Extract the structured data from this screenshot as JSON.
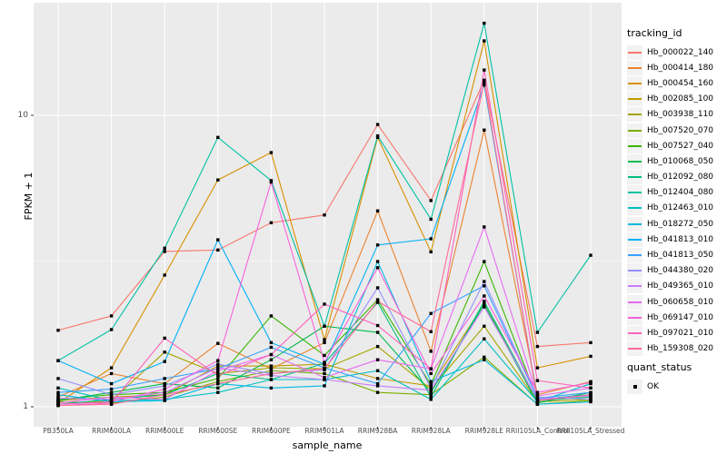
{
  "chart": {
    "ylabel": "FPKM + 1",
    "xlabel": "sample_name",
    "legend_title": "tracking_id",
    "legend2_title": "quant_status",
    "legend2_items": [
      {
        "label": "OK",
        "marker": "black-square"
      }
    ],
    "colors": {
      "panel_bg": "#EBEBEB",
      "grid": "#FFFFFF",
      "tick_mark": "#333333",
      "tick_text": "#4D4D4D",
      "point": "#000000",
      "legend_key_bg": "#F2F2F2"
    }
  },
  "chart_data": {
    "type": "line",
    "yscale": "log10",
    "ylabel": "FPKM + 1",
    "xlabel": "sample_name",
    "y_ticks": [
      {
        "value": 1,
        "label": "1"
      },
      {
        "value": 10,
        "label": "10"
      }
    ],
    "y_minor_gridlines": [
      3.1623
    ],
    "ylim_px_note": "log scale, y=1 and y=10 major gridlines, minor at 10^0.5",
    "grid": true,
    "legend_position": "right",
    "point_marker": "black-square",
    "categories": [
      "PB350LA",
      "RRIM600LA",
      "RRIM600LE",
      "RRIM600SE",
      "RRIM600PE",
      "RRIM901LA",
      "RRIM928BA",
      "RRIM928LA",
      "RRIM928LE",
      "RRII105LA_Control",
      "RRII105LA_Stressed"
    ],
    "series": [
      {
        "name": "Hb_000022_140",
        "color": "#F8766D",
        "values": [
          1.83,
          2.05,
          3.41,
          3.45,
          4.28,
          4.55,
          9.3,
          5.1,
          13.2,
          1.61,
          1.66
        ]
      },
      {
        "name": "Hb_000414_180",
        "color": "#EA8331",
        "values": [
          1.08,
          1.3,
          1.2,
          1.65,
          1.35,
          1.66,
          4.7,
          1.55,
          8.9,
          1.1,
          1.22
        ]
      },
      {
        "name": "Hb_000454_160",
        "color": "#D89000",
        "values": [
          1.03,
          1.36,
          2.83,
          6.0,
          7.45,
          1.7,
          8.4,
          3.4,
          18.0,
          1.36,
          1.49
        ]
      },
      {
        "name": "Hb_002085_100",
        "color": "#C09B00",
        "values": [
          1.05,
          1.08,
          1.1,
          1.38,
          1.38,
          1.4,
          1.25,
          1.18,
          2.25,
          1.05,
          1.08
        ]
      },
      {
        "name": "Hb_003938_110",
        "color": "#A3A500",
        "values": [
          1.02,
          1.05,
          1.54,
          1.3,
          1.36,
          1.35,
          1.61,
          1.15,
          1.89,
          1.04,
          1.06
        ]
      },
      {
        "name": "Hb_007520_070",
        "color": "#7CAE00",
        "values": [
          1.04,
          1.03,
          1.08,
          1.22,
          1.33,
          1.3,
          1.12,
          1.1,
          1.48,
          1.02,
          1.05
        ]
      },
      {
        "name": "Hb_007527_040",
        "color": "#39B600",
        "values": [
          1.06,
          1.1,
          1.12,
          1.25,
          2.05,
          1.5,
          2.33,
          1.19,
          3.15,
          1.06,
          1.1
        ]
      },
      {
        "name": "Hb_010068_050",
        "color": "#00BB4E",
        "values": [
          1.05,
          1.12,
          1.2,
          1.16,
          1.45,
          1.89,
          1.8,
          1.12,
          2.25,
          1.03,
          1.12
        ]
      },
      {
        "name": "Hb_012092_080",
        "color": "#00BF7D",
        "values": [
          1.02,
          1.06,
          1.1,
          1.3,
          1.24,
          1.41,
          2.28,
          1.08,
          2.3,
          1.05,
          1.08
        ]
      },
      {
        "name": "Hb_012404_080",
        "color": "#00C1A3",
        "values": [
          1.44,
          1.84,
          3.5,
          8.4,
          5.97,
          1.89,
          8.5,
          4.4,
          20.7,
          1.8,
          3.31
        ]
      },
      {
        "name": "Hb_012463_010",
        "color": "#00BFC4",
        "values": [
          1.16,
          1.05,
          1.06,
          1.12,
          1.24,
          1.24,
          1.33,
          1.06,
          1.71,
          1.04,
          1.2
        ]
      },
      {
        "name": "Hb_018272_050",
        "color": "#00BAE0",
        "values": [
          1.1,
          1.04,
          1.05,
          1.2,
          1.16,
          1.18,
          3.15,
          1.22,
          1.45,
          1.02,
          1.04
        ]
      },
      {
        "name": "Hb_041813_010",
        "color": "#00B0F6",
        "values": [
          1.44,
          1.2,
          1.43,
          3.74,
          1.66,
          1.4,
          3.59,
          3.77,
          12.7,
          1.06,
          1.1
        ]
      },
      {
        "name": "Hb_041813_050",
        "color": "#35A2FF",
        "values": [
          1.12,
          1.15,
          1.25,
          1.35,
          1.6,
          1.36,
          1.2,
          2.09,
          2.6,
          1.07,
          1.12
        ]
      },
      {
        "name": "Hb_044380_020",
        "color": "#9590FF",
        "values": [
          1.25,
          1.1,
          1.18,
          1.4,
          1.3,
          1.34,
          2.56,
          1.16,
          2.69,
          1.08,
          1.06
        ]
      },
      {
        "name": "Hb_049365_010",
        "color": "#C77CFF",
        "values": [
          1.07,
          1.06,
          1.12,
          1.36,
          1.28,
          1.24,
          1.18,
          1.14,
          2.2,
          1.06,
          1.09
        ]
      },
      {
        "name": "Hb_060658_010",
        "color": "#E76BF3",
        "values": [
          1.03,
          1.08,
          1.06,
          1.33,
          1.51,
          1.26,
          1.45,
          1.35,
          4.14,
          1.09,
          1.16
        ]
      },
      {
        "name": "Hb_069147_010",
        "color": "#FA62DB",
        "values": [
          1.02,
          1.04,
          1.15,
          1.44,
          5.9,
          1.42,
          3.0,
          1.3,
          2.4,
          1.12,
          1.21
        ]
      },
      {
        "name": "Hb_097021_010",
        "color": "#FF62BC",
        "values": [
          1.01,
          1.03,
          1.72,
          1.28,
          1.51,
          2.25,
          1.9,
          1.35,
          14.3,
          1.23,
          1.16
        ]
      },
      {
        "name": "Hb_159308_020",
        "color": "#FF6A98",
        "values": [
          1.01,
          1.02,
          1.1,
          1.2,
          1.3,
          1.35,
          2.3,
          1.81,
          13.0,
          1.05,
          1.1
        ]
      }
    ]
  }
}
